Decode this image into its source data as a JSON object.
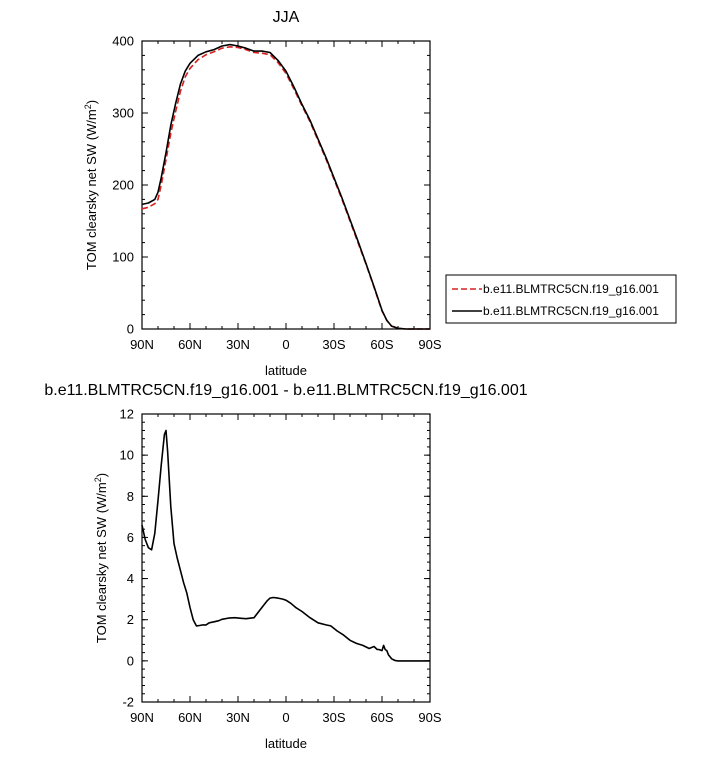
{
  "chart_data": [
    {
      "type": "line",
      "title": "JJA",
      "xlabel": "latitude",
      "ylabel": "TOM clearsky net SW (W/m",
      "ylabel_sup": "2",
      "ylabel_close": ")",
      "xlim": [
        90,
        -90
      ],
      "ylim": [
        0,
        400
      ],
      "x_ticks": [
        90,
        60,
        30,
        0,
        -30,
        -60,
        -90
      ],
      "x_tick_labels": [
        "90N",
        "60N",
        "30N",
        "0",
        "30S",
        "60S",
        "90S"
      ],
      "y_ticks": [
        0,
        100,
        200,
        300,
        400
      ],
      "y_tick_labels": [
        "0",
        "100",
        "200",
        "300",
        "400"
      ],
      "legend": {
        "placement": "right",
        "entries": [
          "b.e11.BLMTRC5CN.f19_g16.001",
          "b.e11.BLMTRC5CN.f19_g16.001"
        ]
      },
      "series": [
        {
          "name": "b.e11.BLMTRC5CN.f19_g16.001",
          "color": "#d62020",
          "dash": "dashed",
          "x": [
            90,
            86,
            82,
            80,
            78,
            75,
            72,
            69,
            66,
            63,
            60,
            55,
            50,
            45,
            40,
            35,
            30,
            25,
            20,
            15,
            10,
            5,
            0,
            -5,
            -10,
            -15,
            -20,
            -25,
            -30,
            -35,
            -40,
            -45,
            -50,
            -55,
            -60,
            -63,
            -66,
            -70,
            -75,
            -80,
            -85,
            -90
          ],
          "y": [
            167,
            169,
            174,
            180,
            200,
            235,
            272,
            302,
            330,
            350,
            362,
            374,
            381,
            385,
            390,
            392,
            391,
            388,
            384,
            383,
            381,
            370,
            355,
            333,
            310,
            288,
            262,
            236,
            208,
            180,
            150,
            120,
            90,
            58,
            25,
            12,
            4,
            1,
            0,
            0,
            0,
            0
          ]
        },
        {
          "name": "b.e11.BLMTRC5CN.f19_g16.001",
          "color": "#000000",
          "dash": "solid",
          "x": [
            90,
            86,
            82,
            80,
            78,
            75,
            72,
            69,
            66,
            63,
            60,
            55,
            50,
            45,
            40,
            35,
            30,
            25,
            20,
            15,
            10,
            5,
            0,
            -5,
            -10,
            -15,
            -20,
            -25,
            -30,
            -35,
            -40,
            -45,
            -50,
            -55,
            -60,
            -63,
            -66,
            -70,
            -75,
            -80,
            -85,
            -90
          ],
          "y": [
            173,
            175,
            180,
            190,
            210,
            245,
            283,
            313,
            340,
            358,
            369,
            380,
            385,
            388,
            393,
            395,
            393,
            390,
            386,
            386,
            384,
            373,
            358,
            336,
            312,
            290,
            264,
            238,
            210,
            182,
            152,
            122,
            91,
            59,
            26,
            12,
            4,
            1,
            0,
            0,
            0,
            0
          ]
        }
      ]
    },
    {
      "type": "line",
      "title": "b.e11.BLMTRC5CN.f19_g16.001 - b.e11.BLMTRC5CN.f19_g16.001",
      "xlabel": "latitude",
      "ylabel": "TOM clearsky net SW (W/m",
      "ylabel_sup": "2",
      "ylabel_close": ")",
      "xlim": [
        90,
        -90
      ],
      "ylim": [
        -2,
        12
      ],
      "x_ticks": [
        90,
        60,
        30,
        0,
        -30,
        -60,
        -90
      ],
      "x_tick_labels": [
        "90N",
        "60N",
        "30N",
        "0",
        "30S",
        "60S",
        "90S"
      ],
      "y_ticks": [
        -2,
        0,
        2,
        4,
        6,
        8,
        10,
        12
      ],
      "y_tick_labels": [
        "-2",
        "0",
        "2",
        "4",
        "6",
        "8",
        "10",
        "12"
      ],
      "series": [
        {
          "color": "#000000",
          "dash": "solid",
          "x": [
            90,
            88,
            86,
            84,
            82,
            80,
            78,
            76,
            75,
            74,
            72,
            70,
            68,
            66,
            64,
            62,
            60,
            58,
            56,
            54,
            52,
            50,
            48,
            45,
            42,
            40,
            36,
            32,
            28,
            25,
            20,
            15,
            12,
            10,
            8,
            5,
            2,
            0,
            -3,
            -6,
            -10,
            -15,
            -20,
            -25,
            -28,
            -32,
            -36,
            -40,
            -44,
            -48,
            -52,
            -55,
            -57,
            -58,
            -60,
            -61,
            -62,
            -63,
            -64,
            -66,
            -68,
            -70,
            -75,
            -80,
            -85,
            -90
          ],
          "y": [
            6.6,
            5.9,
            5.5,
            5.4,
            6.2,
            7.8,
            9.5,
            11.0,
            11.2,
            10.2,
            7.5,
            5.7,
            5.0,
            4.4,
            3.8,
            3.3,
            2.6,
            2.0,
            1.7,
            1.72,
            1.75,
            1.75,
            1.85,
            1.9,
            1.95,
            2.02,
            2.08,
            2.1,
            2.07,
            2.05,
            2.1,
            2.6,
            2.9,
            3.05,
            3.08,
            3.05,
            3.0,
            2.95,
            2.8,
            2.6,
            2.4,
            2.1,
            1.85,
            1.75,
            1.7,
            1.45,
            1.25,
            1.0,
            0.85,
            0.75,
            0.6,
            0.7,
            0.55,
            0.55,
            0.5,
            0.75,
            0.55,
            0.5,
            0.3,
            0.1,
            0.02,
            0.0,
            0.0,
            0.0,
            0.0,
            0.0
          ]
        }
      ]
    }
  ]
}
